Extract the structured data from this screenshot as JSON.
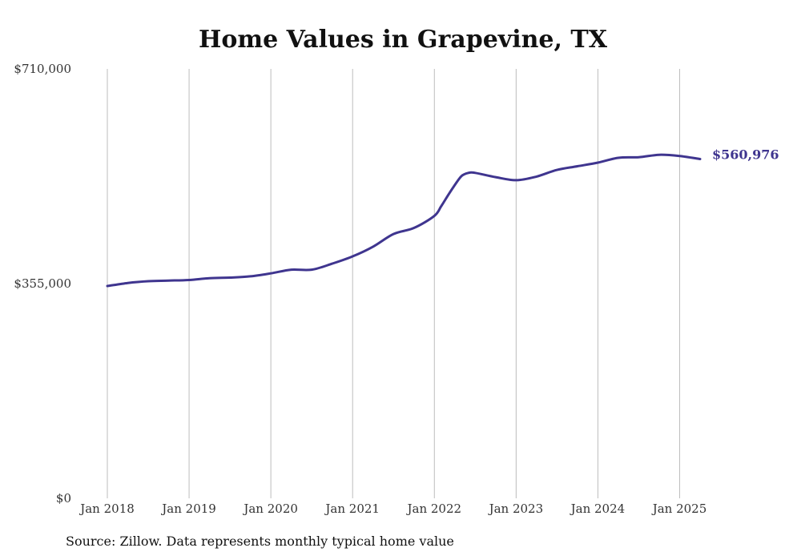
{
  "chart_data": {
    "type": "line",
    "title": "Home Values in Grapevine, TX",
    "xlabel": "",
    "ylabel": "",
    "x_range": [
      "2018-01",
      "2025-04"
    ],
    "ylim": [
      0,
      710000
    ],
    "grid": "vertical",
    "y_ticks": [
      {
        "value": 0,
        "label": "$0"
      },
      {
        "value": 355000,
        "label": "$355,000"
      },
      {
        "value": 710000,
        "label": "$710,000"
      }
    ],
    "x_ticks": [
      {
        "value": "2018-01",
        "label": "Jan 2018"
      },
      {
        "value": "2019-01",
        "label": "Jan 2019"
      },
      {
        "value": "2020-01",
        "label": "Jan 2020"
      },
      {
        "value": "2021-01",
        "label": "Jan 2021"
      },
      {
        "value": "2022-01",
        "label": "Jan 2022"
      },
      {
        "value": "2023-01",
        "label": "Jan 2023"
      },
      {
        "value": "2024-01",
        "label": "Jan 2024"
      },
      {
        "value": "2025-01",
        "label": "Jan 2025"
      }
    ],
    "series": [
      {
        "color": "#3f358f",
        "end_label": "$560,976",
        "points": [
          [
            "2018-01",
            351000
          ],
          [
            "2018-04",
            356000
          ],
          [
            "2018-07",
            359000
          ],
          [
            "2018-10",
            360000
          ],
          [
            "2019-01",
            361000
          ],
          [
            "2019-04",
            364000
          ],
          [
            "2019-07",
            365000
          ],
          [
            "2019-10",
            367000
          ],
          [
            "2020-01",
            372000
          ],
          [
            "2020-04",
            378000
          ],
          [
            "2020-07",
            378000
          ],
          [
            "2020-10",
            388000
          ],
          [
            "2021-01",
            400000
          ],
          [
            "2021-04",
            416000
          ],
          [
            "2021-07",
            437000
          ],
          [
            "2021-10",
            447000
          ],
          [
            "2022-01",
            467000
          ],
          [
            "2022-02",
            483000
          ],
          [
            "2022-03",
            501000
          ],
          [
            "2022-04",
            518000
          ],
          [
            "2022-05",
            533000
          ],
          [
            "2022-06",
            538000
          ],
          [
            "2022-07",
            538000
          ],
          [
            "2022-10",
            531000
          ],
          [
            "2023-01",
            526000
          ],
          [
            "2023-04",
            532000
          ],
          [
            "2023-07",
            543000
          ],
          [
            "2023-10",
            549000
          ],
          [
            "2024-01",
            555000
          ],
          [
            "2024-04",
            563000
          ],
          [
            "2024-07",
            564000
          ],
          [
            "2024-10",
            568000
          ],
          [
            "2025-01",
            566000
          ],
          [
            "2025-04",
            560976
          ]
        ]
      }
    ]
  },
  "footer": {
    "source": "Source: Zillow. Data represents monthly typical home value"
  }
}
